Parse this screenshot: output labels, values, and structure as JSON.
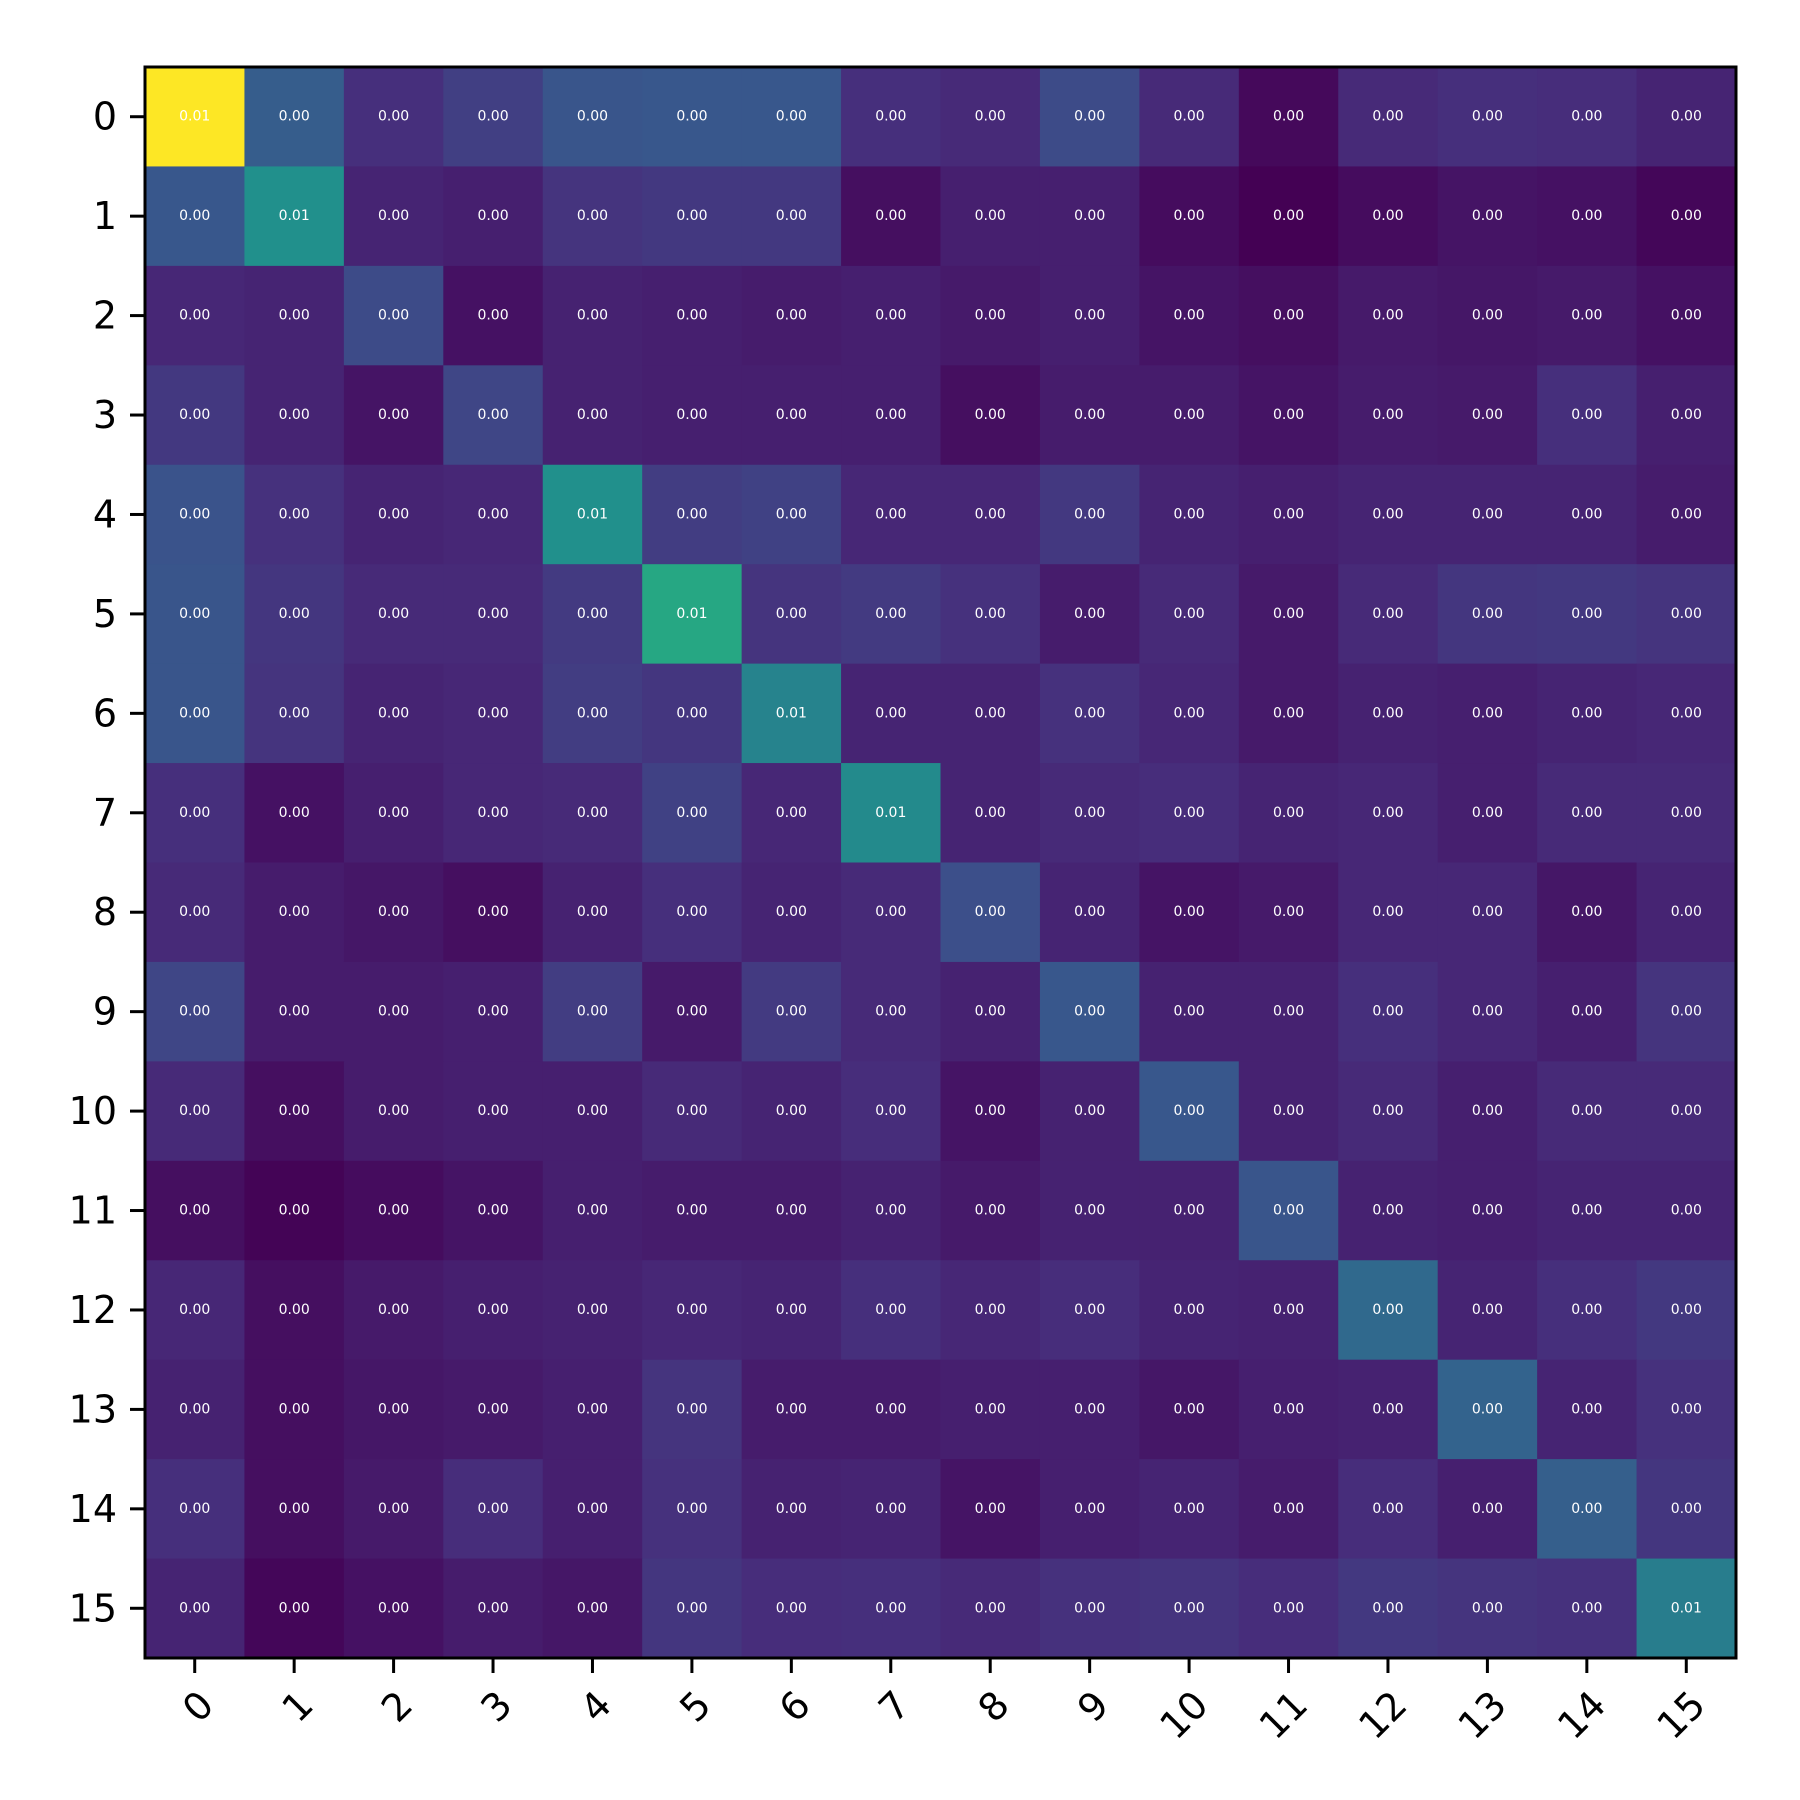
{
  "chart_data": {
    "type": "heatmap",
    "title": "",
    "xlabel": "",
    "ylabel": "",
    "x_labels": [
      "0",
      "1",
      "2",
      "3",
      "4",
      "5",
      "6",
      "7",
      "8",
      "9",
      "10",
      "11",
      "12",
      "13",
      "14",
      "15"
    ],
    "y_labels": [
      "0",
      "1",
      "2",
      "3",
      "4",
      "5",
      "6",
      "7",
      "8",
      "9",
      "10",
      "11",
      "12",
      "13",
      "14",
      "15"
    ],
    "colormap": "viridis",
    "grid": false,
    "value_format": "2 decimals",
    "values": [
      [
        0.013,
        0.0039,
        0.0018,
        0.0025,
        0.0035,
        0.0036,
        0.0036,
        0.0018,
        0.0016,
        0.003,
        0.0016,
        0.0004,
        0.0016,
        0.0018,
        0.0017,
        0.0014
      ],
      [
        0.0036,
        0.0065,
        0.0014,
        0.0012,
        0.002,
        0.0022,
        0.0022,
        0.0006,
        0.0012,
        0.0012,
        0.0005,
        0.0001,
        0.0005,
        0.0008,
        0.0007,
        0.0003
      ],
      [
        0.0015,
        0.0014,
        0.003,
        0.0007,
        0.0013,
        0.0012,
        0.0011,
        0.0012,
        0.001,
        0.0012,
        0.0008,
        0.0006,
        0.001,
        0.0009,
        0.001,
        0.0007
      ],
      [
        0.0022,
        0.0014,
        0.0008,
        0.0028,
        0.0013,
        0.0012,
        0.0012,
        0.0012,
        0.0006,
        0.0011,
        0.0011,
        0.0008,
        0.0011,
        0.001,
        0.0018,
        0.0012
      ],
      [
        0.0034,
        0.0019,
        0.0014,
        0.0015,
        0.0065,
        0.0024,
        0.0026,
        0.0015,
        0.0015,
        0.0022,
        0.0014,
        0.0012,
        0.0014,
        0.0014,
        0.0014,
        0.0011
      ],
      [
        0.0035,
        0.0021,
        0.0016,
        0.0016,
        0.0023,
        0.0078,
        0.002,
        0.0023,
        0.0019,
        0.0011,
        0.0016,
        0.001,
        0.0016,
        0.0021,
        0.0022,
        0.002
      ],
      [
        0.0035,
        0.002,
        0.0014,
        0.0015,
        0.0024,
        0.0021,
        0.0058,
        0.0014,
        0.0014,
        0.0019,
        0.0015,
        0.001,
        0.0013,
        0.0012,
        0.0014,
        0.0015
      ],
      [
        0.0018,
        0.0007,
        0.0012,
        0.0015,
        0.0016,
        0.0026,
        0.0015,
        0.0062,
        0.0014,
        0.0016,
        0.0017,
        0.0014,
        0.0015,
        0.0012,
        0.0016,
        0.0016
      ],
      [
        0.0016,
        0.0011,
        0.0009,
        0.0006,
        0.0013,
        0.0018,
        0.0014,
        0.0016,
        0.0032,
        0.0014,
        0.0008,
        0.001,
        0.0015,
        0.0015,
        0.0009,
        0.0014
      ],
      [
        0.0028,
        0.0011,
        0.0011,
        0.0012,
        0.0024,
        0.001,
        0.0023,
        0.0016,
        0.0013,
        0.0036,
        0.0013,
        0.0013,
        0.0018,
        0.0015,
        0.0012,
        0.002
      ],
      [
        0.0016,
        0.0006,
        0.0011,
        0.0012,
        0.0012,
        0.0016,
        0.0014,
        0.0017,
        0.0008,
        0.0013,
        0.0036,
        0.0013,
        0.0016,
        0.0012,
        0.0016,
        0.0016
      ],
      [
        0.0006,
        0.0002,
        0.0005,
        0.0008,
        0.0012,
        0.0011,
        0.0011,
        0.0013,
        0.001,
        0.0013,
        0.0013,
        0.0035,
        0.0013,
        0.0012,
        0.0014,
        0.0014
      ],
      [
        0.0015,
        0.0006,
        0.001,
        0.0012,
        0.0013,
        0.0015,
        0.0014,
        0.0018,
        0.0015,
        0.0017,
        0.0014,
        0.0013,
        0.0045,
        0.0014,
        0.0018,
        0.0022
      ],
      [
        0.0013,
        0.0006,
        0.0009,
        0.001,
        0.0012,
        0.002,
        0.0011,
        0.0011,
        0.0012,
        0.0012,
        0.0009,
        0.0012,
        0.0013,
        0.0042,
        0.0014,
        0.0019
      ],
      [
        0.0018,
        0.0006,
        0.001,
        0.0017,
        0.0012,
        0.0019,
        0.0013,
        0.0014,
        0.0008,
        0.0012,
        0.0014,
        0.0011,
        0.0017,
        0.0012,
        0.004,
        0.0021
      ],
      [
        0.0014,
        0.0003,
        0.0007,
        0.0011,
        0.0009,
        0.0021,
        0.0017,
        0.0018,
        0.0016,
        0.0019,
        0.002,
        0.0017,
        0.0022,
        0.002,
        0.0019,
        0.0055
      ]
    ]
  }
}
